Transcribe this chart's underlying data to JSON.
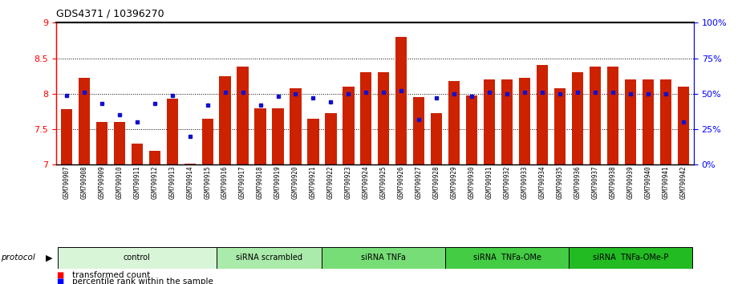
{
  "title": "GDS4371 / 10396270",
  "samples": [
    "GSM790907",
    "GSM790908",
    "GSM790909",
    "GSM790910",
    "GSM790911",
    "GSM790912",
    "GSM790913",
    "GSM790914",
    "GSM790915",
    "GSM790916",
    "GSM790917",
    "GSM790918",
    "GSM790919",
    "GSM790920",
    "GSM790921",
    "GSM790922",
    "GSM790923",
    "GSM790924",
    "GSM790925",
    "GSM790926",
    "GSM790927",
    "GSM790928",
    "GSM790929",
    "GSM790930",
    "GSM790931",
    "GSM790932",
    "GSM790933",
    "GSM790934",
    "GSM790935",
    "GSM790936",
    "GSM790937",
    "GSM790938",
    "GSM790939",
    "GSM790940",
    "GSM790941",
    "GSM790942"
  ],
  "bar_values": [
    7.78,
    8.22,
    7.6,
    7.6,
    7.3,
    7.2,
    7.93,
    7.02,
    7.65,
    8.25,
    8.38,
    7.8,
    7.8,
    8.08,
    7.65,
    7.73,
    8.1,
    8.3,
    8.3,
    8.8,
    7.95,
    7.73,
    8.18,
    7.98,
    8.2,
    8.2,
    8.22,
    8.4,
    8.08,
    8.3,
    8.38,
    8.38,
    8.2,
    8.2,
    8.2,
    8.1
  ],
  "percentile_values": [
    49,
    51,
    43,
    35,
    30,
    43,
    49,
    20,
    42,
    51,
    51,
    42,
    48,
    50,
    47,
    44,
    50,
    51,
    51,
    52,
    32,
    47,
    50,
    48,
    51,
    50,
    51,
    51,
    50,
    51,
    51,
    51,
    50,
    50,
    50,
    30
  ],
  "protocol_groups": [
    {
      "label": "control",
      "start": 0,
      "end": 9,
      "color": "#d8f5d8"
    },
    {
      "label": "siRNA scrambled",
      "start": 9,
      "end": 15,
      "color": "#99ee99"
    },
    {
      "label": "siRNA TNFa",
      "start": 15,
      "end": 22,
      "color": "#66dd66"
    },
    {
      "label": "siRNA  TNFa-OMe",
      "start": 22,
      "end": 29,
      "color": "#44cc44"
    },
    {
      "label": "siRNA  TNFa-OMe-P",
      "start": 29,
      "end": 36,
      "color": "#22bb22"
    }
  ],
  "ylim_left": [
    7.0,
    9.0
  ],
  "ylim_right": [
    0,
    100
  ],
  "bar_color": "#cc2200",
  "dot_color": "#1111cc",
  "plot_bg": "#e8e8e8",
  "tick_bg": "#d0d0d0"
}
